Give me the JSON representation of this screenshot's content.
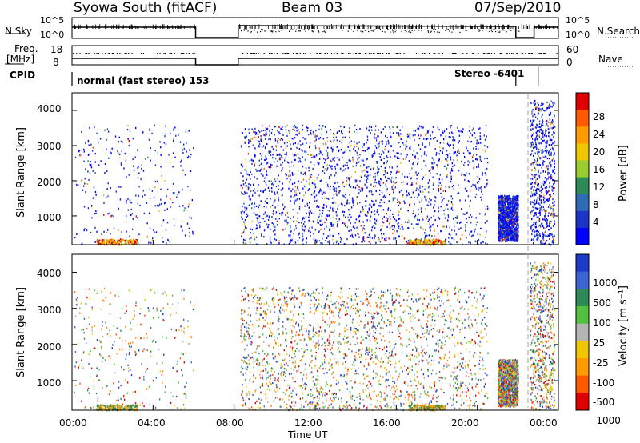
{
  "header": {
    "title": "Syowa South (fitACF)",
    "beam": "Beam 03",
    "date": "07/Sep/2010"
  },
  "top_panels": {
    "nsky_label": "N.Sky",
    "nsky_ticks": [
      "10^5",
      "10^0"
    ],
    "nsearch_label": "N.Search",
    "nsearch_ticks": [
      "10^5",
      "10^0"
    ],
    "freq_label": "Freq.",
    "freq_unit": "[MHz]",
    "freq_ticks": [
      "18",
      "8"
    ],
    "nave_label": "Nave",
    "nave_ticks": [
      "60",
      "0"
    ],
    "cpid_label": "CPID",
    "cpid_segment_1": "normal (fast stereo) 153",
    "cpid_segment_2": "Stereo -6401"
  },
  "power_panel": {
    "ylabel": "Slant Range [km]",
    "yticks": [
      "4000",
      "3000",
      "2000",
      "1000"
    ],
    "colorbar_label": "Power [dB]",
    "colorbar_ticks": [
      "28",
      "24",
      "20",
      "16",
      "12",
      "8",
      "4"
    ],
    "colorbar_colors": [
      "#e00000",
      "#ff5a00",
      "#ff9a00",
      "#f0c800",
      "#9acd32",
      "#2e8b57",
      "#2e6bb4",
      "#1c34c8",
      "#0000ff"
    ]
  },
  "velocity_panel": {
    "ylabel": "Slant Range [km]",
    "yticks": [
      "4000",
      "3000",
      "2000",
      "1000"
    ],
    "colorbar_label": "Velocity [m s⁻¹]",
    "colorbar_ticks": [
      "1000",
      "500",
      "100",
      "25",
      "-25",
      "-100",
      "-500",
      "-1000"
    ],
    "colorbar_colors": [
      "#1e3cc8",
      "#3c64d2",
      "#2e8b57",
      "#55c040",
      "#b4b4b4",
      "#f0c800",
      "#ff9a00",
      "#ff5a00",
      "#e00000"
    ]
  },
  "x_axis": {
    "label": "Time UT",
    "ticks": [
      "00:00",
      "04:00",
      "08:00",
      "12:00",
      "16:00",
      "20:00",
      "00:00"
    ]
  },
  "chart_data": {
    "type": "heatmap",
    "title": "Syowa South (fitACF)",
    "subtitle": "Beam 03",
    "date": "07/Sep/2010",
    "xlabel": "Time UT",
    "ylabel": "Slant Range [km]",
    "xlim": [
      0,
      24
    ],
    "ylim": [
      180,
      4500
    ],
    "panels": [
      "Power [dB]",
      "Velocity [m s^-1]"
    ],
    "data_gaps_hours": [
      [
        6.1,
        8.2
      ]
    ],
    "scatter_regions": [
      {
        "start_h": 0.1,
        "end_h": 6.0,
        "range_km": [
          200,
          3600
        ],
        "density": "sparse"
      },
      {
        "start_h": 8.3,
        "end_h": 16.0,
        "range_km": [
          200,
          3600
        ],
        "density": "dense"
      },
      {
        "start_h": 16.0,
        "end_h": 20.5,
        "range_km": [
          200,
          3600
        ],
        "density": "medium"
      },
      {
        "start_h": 21.0,
        "end_h": 22.0,
        "range_km": [
          300,
          1600
        ],
        "density": "dense"
      },
      {
        "start_h": 22.6,
        "end_h": 23.8,
        "range_km": [
          200,
          4300
        ],
        "density": "medium"
      }
    ],
    "ground_scatter_bands": [
      {
        "start_h": 1.2,
        "end_h": 3.2,
        "range_km": [
          200,
          350
        ]
      },
      {
        "start_h": 16.6,
        "end_h": 18.4,
        "range_km": [
          200,
          350
        ]
      }
    ]
  }
}
